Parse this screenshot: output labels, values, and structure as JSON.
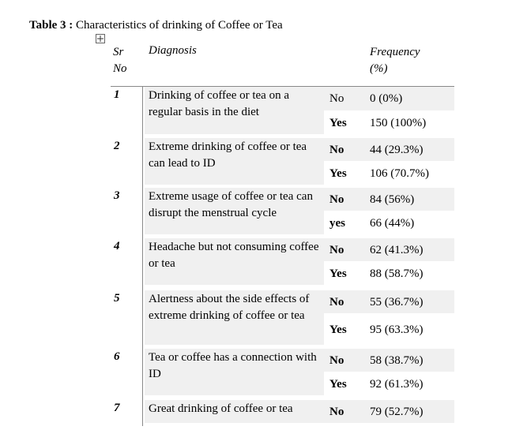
{
  "title": {
    "label": "Table 3 :",
    "text": "Characteristics of drinking of Coffee or Tea"
  },
  "table": {
    "header": {
      "sr": "Sr\nNo",
      "diagnosis": "Diagnosis",
      "frequency": "Frequency\n(%)"
    },
    "rows": [
      {
        "sr": "1",
        "diagnosis": "Drinking of coffee or tea  on a regular basis in the diet",
        "answers": [
          {
            "answer": "No",
            "frequency": "0 (0%)"
          },
          {
            "answer": "Yes",
            "frequency": "150 (100%)"
          }
        ]
      },
      {
        "sr": "2",
        "diagnosis": "Extreme drinking of coffee or tea  can lead to ID",
        "answers": [
          {
            "answer": "No",
            "frequency": "44 (29.3%)"
          },
          {
            "answer": "Yes",
            "frequency": "106 (70.7%)"
          }
        ]
      },
      {
        "sr": "3",
        "diagnosis": "Extreme usage of coffee or tea can disrupt the menstrual cycle",
        "answers": [
          {
            "answer": "No",
            "frequency": "84 (56%)"
          },
          {
            "answer": "yes",
            "frequency": "66 (44%)"
          }
        ]
      },
      {
        "sr": "4",
        "diagnosis": "Headache but not consuming coffee or  tea",
        "answers": [
          {
            "answer": "No",
            "frequency": "62 (41.3%)"
          },
          {
            "answer": "Yes",
            "frequency": "88 (58.7%)"
          }
        ]
      },
      {
        "sr": "5",
        "diagnosis": "Alertness about the side effects of extreme drinking of coffee or tea",
        "answers": [
          {
            "answer": "No",
            "frequency": "55 (36.7%)"
          },
          {
            "answer": "Yes",
            "frequency": "95 (63.3%)"
          }
        ]
      },
      {
        "sr": "6",
        "diagnosis": "Tea or coffee has a connection with ID",
        "answers": [
          {
            "answer": "No",
            "frequency": "58 (38.7%)"
          },
          {
            "answer": "Yes",
            "frequency": "92 (61.3%)"
          }
        ]
      },
      {
        "sr": "7",
        "diagnosis": "Great drinking of coffee or tea",
        "answers": [
          {
            "answer": "No",
            "frequency": "79 (52.7%)"
          }
        ]
      }
    ]
  }
}
